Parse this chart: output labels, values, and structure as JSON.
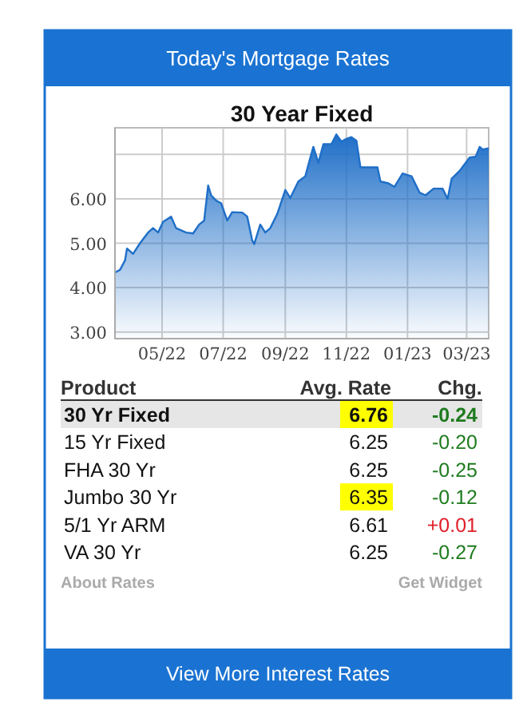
{
  "chart_data": [
    {
      "type": "other",
      "title": "Today's Mortgage Rates",
      "xlabel": "Product",
      "categories": [
        "30 Yr Fixed",
        "15 Yr Fixed",
        "FHA 30 Yr",
        "Jumbo 30 Yr",
        "5/1 Yr ARM",
        "VA 30 Yr"
      ],
      "series": [
        {
          "name": "Avg. Rate",
          "values": [
            6.76,
            6.25,
            6.25,
            6.35,
            6.61,
            6.25
          ],
          "value_labels": [
            "6.76",
            "6.25",
            "6.25",
            "6.35",
            "6.61",
            "6.25"
          ],
          "colors": [
            "#ffff00",
            null,
            null,
            "#ffff00",
            null,
            null
          ]
        },
        {
          "name": "Chg.",
          "values": [
            -0.24,
            -0.2,
            -0.25,
            -0.12,
            0.01,
            -0.27
          ],
          "value_labels": [
            "-0.24",
            "-0.20",
            "-0.25",
            "-0.12",
            "+0.01",
            "-0.27"
          ],
          "colors": [
            "#1e7b1e",
            "#1e7b1e",
            "#1e7b1e",
            "#1e7b1e",
            "#e0202a",
            "#1e7b1e"
          ]
        }
      ],
      "annotations": [
        "About Rates",
        "Get Widget",
        "View More Interest Rates"
      ]
    },
    {
      "type": "area",
      "title": "30 Year Fixed",
      "color": "#1f6fc8",
      "grid": true,
      "xlim": [
        "2022-03-15",
        "2023-03-23"
      ],
      "xticks": [
        {
          "value": "2022-05-01",
          "label": "05/22"
        },
        {
          "value": "2022-07-01",
          "label": "07/22"
        },
        {
          "value": "2022-09-01",
          "label": "09/22"
        },
        {
          "value": "2022-11-01",
          "label": "11/22"
        },
        {
          "value": "2023-01-01",
          "label": "01/23"
        },
        {
          "value": "2023-03-01",
          "label": "03/23"
        }
      ],
      "ylim": [
        2.85,
        7.6
      ],
      "yticks": [
        {
          "value": 3,
          "label": "3.00"
        },
        {
          "value": 4,
          "label": "4.00"
        },
        {
          "value": 5,
          "label": "5.00"
        },
        {
          "value": 6,
          "label": "6.00"
        },
        {
          "value": 7,
          "label": null
        }
      ],
      "x": [
        "2022-03-15",
        "2022-03-20",
        "2022-03-25",
        "2022-03-27",
        "2022-04-02",
        "2022-04-09",
        "2022-04-17",
        "2022-04-22",
        "2022-04-27",
        "2022-05-02",
        "2022-05-10",
        "2022-05-15",
        "2022-05-25",
        "2022-06-01",
        "2022-06-07",
        "2022-06-12",
        "2022-06-16",
        "2022-06-19",
        "2022-06-24",
        "2022-06-29",
        "2022-07-05",
        "2022-07-10",
        "2022-07-20",
        "2022-07-25",
        "2022-07-30",
        "2022-08-01",
        "2022-08-07",
        "2022-08-12",
        "2022-08-17",
        "2022-08-24",
        "2022-09-01",
        "2022-09-06",
        "2022-09-14",
        "2022-09-21",
        "2022-09-26",
        "2022-09-29",
        "2022-10-04",
        "2022-10-09",
        "2022-10-17",
        "2022-10-22",
        "2022-10-27",
        "2022-11-01",
        "2022-11-06",
        "2022-11-11",
        "2022-11-15",
        "2022-11-20",
        "2022-12-02",
        "2022-12-05",
        "2022-12-13",
        "2022-12-19",
        "2022-12-27",
        "2023-01-05",
        "2023-01-13",
        "2023-01-19",
        "2023-01-27",
        "2023-02-05",
        "2023-02-10",
        "2023-02-14",
        "2023-02-22",
        "2023-03-04",
        "2023-03-10",
        "2023-03-14",
        "2023-03-17",
        "2023-03-23"
      ],
      "values": [
        4.34,
        4.4,
        4.61,
        4.88,
        4.76,
        5.0,
        5.24,
        5.34,
        5.24,
        5.48,
        5.6,
        5.34,
        5.24,
        5.22,
        5.42,
        5.51,
        6.3,
        6.08,
        5.96,
        5.9,
        5.51,
        5.7,
        5.69,
        5.6,
        5.06,
        4.98,
        5.42,
        5.24,
        5.34,
        5.66,
        6.2,
        6.02,
        6.39,
        6.51,
        6.93,
        7.17,
        6.81,
        7.23,
        7.23,
        7.45,
        7.29,
        7.35,
        7.39,
        7.31,
        6.71,
        6.71,
        6.71,
        6.39,
        6.35,
        6.27,
        6.57,
        6.51,
        6.14,
        6.08,
        6.23,
        6.23,
        6.0,
        6.45,
        6.63,
        6.93,
        6.95,
        7.17,
        7.11,
        7.14
      ]
    }
  ]
}
